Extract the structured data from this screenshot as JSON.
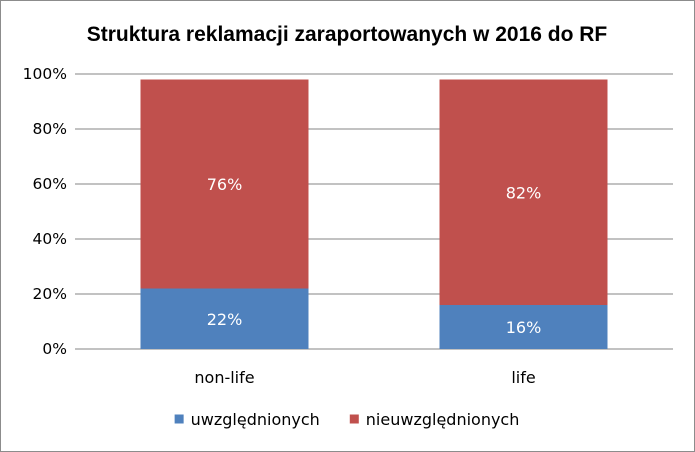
{
  "chart_data": {
    "type": "bar",
    "stacked": true,
    "title": "Struktura reklamacji zaraportowanych w 2016 do RF",
    "categories": [
      "non-life",
      "life"
    ],
    "ylim": [
      0,
      100
    ],
    "yticks": [
      "0%",
      "20%",
      "40%",
      "60%",
      "80%",
      "100%"
    ],
    "ytick_values": [
      0,
      20,
      40,
      60,
      80,
      100
    ],
    "grid": true,
    "legend_position": "bottom",
    "series": [
      {
        "name": "uwzględnionych",
        "values": [
          22,
          16
        ],
        "labels": [
          "22%",
          "16%"
        ],
        "color": "#4f81bd"
      },
      {
        "name": "nieuwzględnionych",
        "values": [
          76,
          82
        ],
        "labels": [
          "76%",
          "82%"
        ],
        "color": "#c0504d"
      }
    ]
  }
}
